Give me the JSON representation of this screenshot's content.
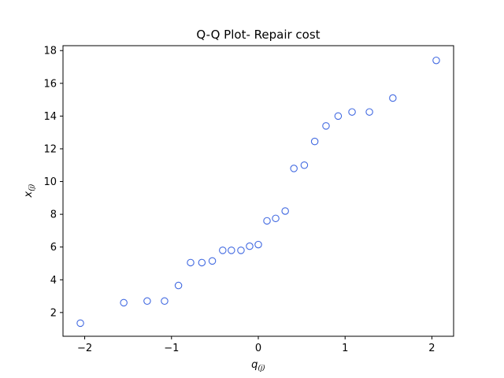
{
  "chart_data": {
    "type": "scatter",
    "title": "Q-Q Plot- Repair cost",
    "xlabel": "q",
    "xlabel_sub": "(j)",
    "ylabel": "x",
    "ylabel_sub": "(j)",
    "xlim": [
      -2.25,
      2.25
    ],
    "ylim": [
      0.55,
      18.3
    ],
    "xticks": [
      -2,
      -1,
      0,
      1,
      2
    ],
    "yticks": [
      2,
      4,
      6,
      8,
      10,
      12,
      14,
      16,
      18
    ],
    "grid": false,
    "marker_color": "#4169e1",
    "points": [
      {
        "x": -2.05,
        "y": 1.35
      },
      {
        "x": -1.55,
        "y": 2.6
      },
      {
        "x": -1.28,
        "y": 2.7
      },
      {
        "x": -1.08,
        "y": 2.7
      },
      {
        "x": -0.92,
        "y": 3.65
      },
      {
        "x": -0.78,
        "y": 5.05
      },
      {
        "x": -0.65,
        "y": 5.05
      },
      {
        "x": -0.53,
        "y": 5.15
      },
      {
        "x": -0.41,
        "y": 5.8
      },
      {
        "x": -0.31,
        "y": 5.8
      },
      {
        "x": -0.2,
        "y": 5.8
      },
      {
        "x": -0.1,
        "y": 6.05
      },
      {
        "x": 0.0,
        "y": 6.15
      },
      {
        "x": 0.1,
        "y": 7.6
      },
      {
        "x": 0.2,
        "y": 7.75
      },
      {
        "x": 0.31,
        "y": 8.2
      },
      {
        "x": 0.41,
        "y": 10.8
      },
      {
        "x": 0.53,
        "y": 11.0
      },
      {
        "x": 0.65,
        "y": 12.45
      },
      {
        "x": 0.78,
        "y": 13.4
      },
      {
        "x": 0.92,
        "y": 14.0
      },
      {
        "x": 1.08,
        "y": 14.25
      },
      {
        "x": 1.28,
        "y": 14.25
      },
      {
        "x": 1.55,
        "y": 15.1
      },
      {
        "x": 2.05,
        "y": 17.4
      }
    ]
  }
}
